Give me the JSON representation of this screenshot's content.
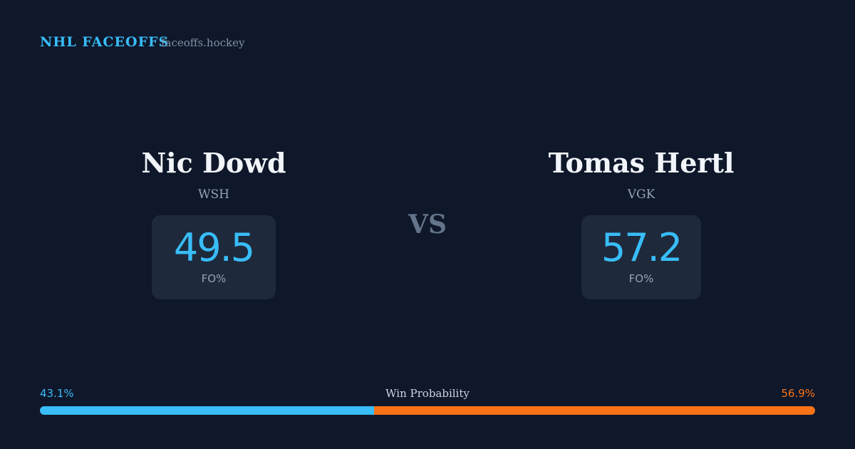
{
  "header": {
    "brand": "NHL FACEOFFS",
    "site": "faceoffs.hockey"
  },
  "players": [
    {
      "name": "Nic Dowd",
      "team": "WSH",
      "fo_pct": 49.5,
      "fo_label": "FO%"
    },
    {
      "name": "Tomas Hertl",
      "team": "VGK",
      "fo_pct": 57.2,
      "fo_label": "FO%"
    }
  ],
  "vs": "VS",
  "win_probability": {
    "label": "Win Probability",
    "values": [
      43.1,
      56.9
    ],
    "value_labels": [
      "43.1%",
      "56.9%"
    ],
    "colors": [
      "#38bdf8",
      "#f97316"
    ]
  }
}
